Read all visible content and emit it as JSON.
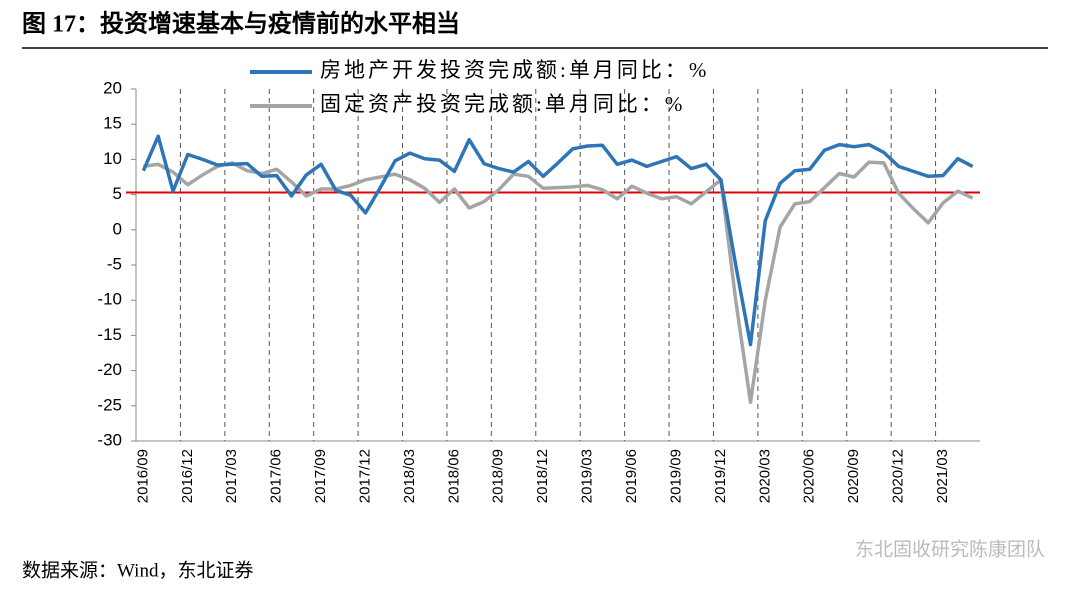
{
  "chart_data": {
    "type": "line",
    "title": "图 17：投资增速基本与疫情前的水平相当",
    "source": "数据来源：Wind，东北证券",
    "watermark": "东北固收研究陈康团队",
    "categories": [
      "2016/09",
      null,
      null,
      "2016/12",
      null,
      null,
      "2017/03",
      null,
      null,
      "2017/06",
      null,
      null,
      "2017/09",
      null,
      null,
      "2017/12",
      null,
      null,
      "2018/03",
      null,
      null,
      "2018/06",
      null,
      null,
      "2018/09",
      null,
      null,
      "2018/12",
      null,
      null,
      "2019/03",
      null,
      null,
      "2019/06",
      null,
      null,
      "2019/09",
      null,
      null,
      "2019/12",
      null,
      null,
      "2020/03",
      null,
      null,
      "2020/06",
      null,
      null,
      "2020/09",
      null,
      null,
      "2020/12",
      null,
      null,
      "2021/03",
      null,
      null
    ],
    "series": [
      {
        "name": "房地产开发投资完成额:单月同比：%",
        "color": "#2e75b6",
        "values": [
          8.4,
          13.3,
          5.5,
          10.7,
          10,
          9.2,
          9.3,
          9.4,
          7.6,
          7.7,
          4.8,
          7.8,
          9.3,
          5.6,
          4.9,
          2.4,
          6,
          9.8,
          10.9,
          10.1,
          9.9,
          8.3,
          12.8,
          9.4,
          8.7,
          8.2,
          9.7,
          7.6,
          9.5,
          11.5,
          11.9,
          12,
          9.3,
          9.9,
          9,
          9.7,
          10.4,
          8.7,
          9.3,
          7.1,
          -5,
          -16.3,
          1.3,
          6.6,
          8.4,
          8.6,
          11.3,
          12.1,
          11.8,
          12.1,
          11,
          9,
          8.3,
          7.6,
          7.7,
          10.1,
          9
        ]
      },
      {
        "name": "固定资产投资完成额:单月同比：%",
        "color": "#a5a5a5",
        "values": [
          9,
          9.3,
          8.2,
          6.4,
          7.8,
          9,
          9.5,
          8.4,
          8,
          8.6,
          6.8,
          4.8,
          5.8,
          5.8,
          6.3,
          7.1,
          7.5,
          7.9,
          7.1,
          5.9,
          3.9,
          5.8,
          3.1,
          4,
          5.7,
          7.9,
          7.6,
          5.9,
          6,
          6.1,
          6.3,
          5.7,
          4.4,
          6.2,
          5.2,
          4.4,
          4.7,
          3.7,
          5.4,
          7.1,
          -10,
          -24.5,
          -10,
          0.4,
          3.7,
          4,
          6,
          8,
          7.5,
          9.6,
          9.5,
          5.2,
          3,
          1,
          3.8,
          5.5,
          4.5
        ]
      }
    ],
    "reference_line": {
      "value": 5.3,
      "color": "#e00000"
    },
    "ylim": [
      -30,
      20
    ],
    "yticks": [
      -30,
      -25,
      -20,
      -15,
      -10,
      -5,
      0,
      5,
      10,
      15,
      20
    ]
  }
}
